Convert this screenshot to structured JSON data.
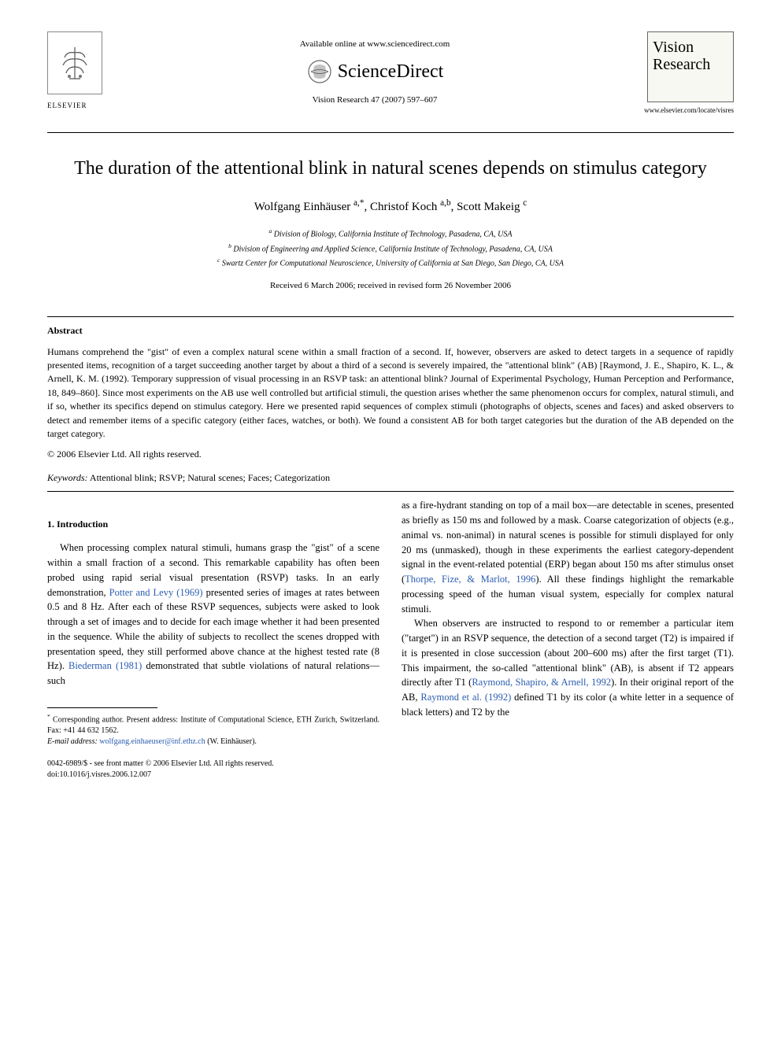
{
  "header": {
    "available_text": "Available online at www.sciencedirect.com",
    "scidirect_label": "ScienceDirect",
    "elsevier_label": "ELSEVIER",
    "journal_ref": "Vision Research 47 (2007) 597–607",
    "journal_name_line1": "Vision",
    "journal_name_line2": "Research",
    "journal_locate": "www.elsevier.com/locate/visres"
  },
  "title": "The duration of the attentional blink in natural scenes depends on stimulus category",
  "authors_html": "Wolfgang Einhäuser <sup>a,*</sup>, Christof Koch <sup>a,b</sup>, Scott Makeig <sup>c</sup>",
  "affiliations": {
    "a": "Division of Biology, California Institute of Technology, Pasadena, CA, USA",
    "b": "Division of Engineering and Applied Science, California Institute of Technology, Pasadena, CA, USA",
    "c": "Swartz Center for Computational Neuroscience, University of California at San Diego, San Diego, CA, USA"
  },
  "received": "Received 6 March 2006; received in revised form 26 November 2006",
  "abstract": {
    "heading": "Abstract",
    "body": "Humans comprehend the \"gist\" of even a complex natural scene within a small fraction of a second. If, however, observers are asked to detect targets in a sequence of rapidly presented items, recognition of a target succeeding another target by about a third of a second is severely impaired, the \"attentional blink\" (AB) [Raymond, J. E., Shapiro, K. L., & Arnell, K. M. (1992). Temporary suppression of visual processing in an RSVP task: an attentional blink? Journal of Experimental Psychology, Human Perception and Performance, 18, 849–860]. Since most experiments on the AB use well controlled but artificial stimuli, the question arises whether the same phenomenon occurs for complex, natural stimuli, and if so, whether its specifics depend on stimulus category. Here we presented rapid sequences of complex stimuli (photographs of objects, scenes and faces) and asked observers to detect and remember items of a specific category (either faces, watches, or both). We found a consistent AB for both target categories but the duration of the AB depended on the target category.",
    "copyright": "© 2006 Elsevier Ltd. All rights reserved."
  },
  "keywords": {
    "label": "Keywords:",
    "text": "Attentional blink; RSVP; Natural scenes; Faces; Categorization"
  },
  "section1": {
    "heading": "1. Introduction",
    "para1_part1": "When processing complex natural stimuli, humans grasp the \"gist\" of a scene within a small fraction of a second. This remarkable capability has often been probed using rapid serial visual presentation (RSVP) tasks. In an early demonstration, ",
    "cite1": "Potter and Levy (1969)",
    "para1_part2": " presented series of images at rates between 0.5 and 8 Hz. After each of these RSVP sequences, subjects were asked to look through a set of images and to decide for each image whether it had been presented in the sequence. While the ability of subjects to recollect the scenes dropped with presentation speed, they still performed above chance at the highest tested rate (8 Hz). ",
    "cite2": "Biederman (1981)",
    "para1_part3": " demonstrated that subtle violations of natural relations—such",
    "col2_part1": "as a fire-hydrant standing on top of a mail box—are detectable in scenes, presented as briefly as 150 ms and followed by a mask. Coarse categorization of objects (e.g., animal vs. non-animal) in natural scenes is possible for stimuli displayed for only 20 ms (unmasked), though in these experiments the earliest category-dependent signal in the event-related potential (ERP) began about 150 ms after stimulus onset (",
    "cite3": "Thorpe, Fize, & Marlot, 1996",
    "col2_part2": "). All these findings highlight the remarkable processing speed of the human visual system, especially for complex natural stimuli.",
    "para2_part1": "When observers are instructed to respond to or remember a particular item (\"target\") in an RSVP sequence, the detection of a second target (T2) is impaired if it is presented in close succession (about 200–600 ms) after the first target (T1). This impairment, the so-called \"attentional blink\" (AB), is absent if T2 appears directly after T1 (",
    "cite4": "Raymond, Shapiro, & Arnell, 1992",
    "para2_part2": "). In their original report of the AB, ",
    "cite5": "Raymond et al. (1992)",
    "para2_part3": " defined T1 by its color (a white letter in a sequence of black letters) and T2 by the"
  },
  "footnote": {
    "corr": "Corresponding author. Present address: Institute of Computational Science, ETH Zurich, Switzerland. Fax: +41 44 632 1562.",
    "email_label": "E-mail address:",
    "email": "wolfgang.einhaeuser@inf.ethz.ch",
    "email_name": "(W. Einhäuser)."
  },
  "doi": {
    "line1": "0042-6989/$ - see front matter © 2006 Elsevier Ltd. All rights reserved.",
    "line2": "doi:10.1016/j.visres.2006.12.007"
  },
  "colors": {
    "link": "#2a5db0",
    "text": "#000000",
    "background": "#ffffff",
    "box_border": "#666666",
    "box_bg": "#f8f8f2"
  },
  "typography": {
    "body_pt": 12.5,
    "title_pt": 24,
    "authors_pt": 15,
    "affil_pt": 10,
    "footnote_pt": 10
  }
}
